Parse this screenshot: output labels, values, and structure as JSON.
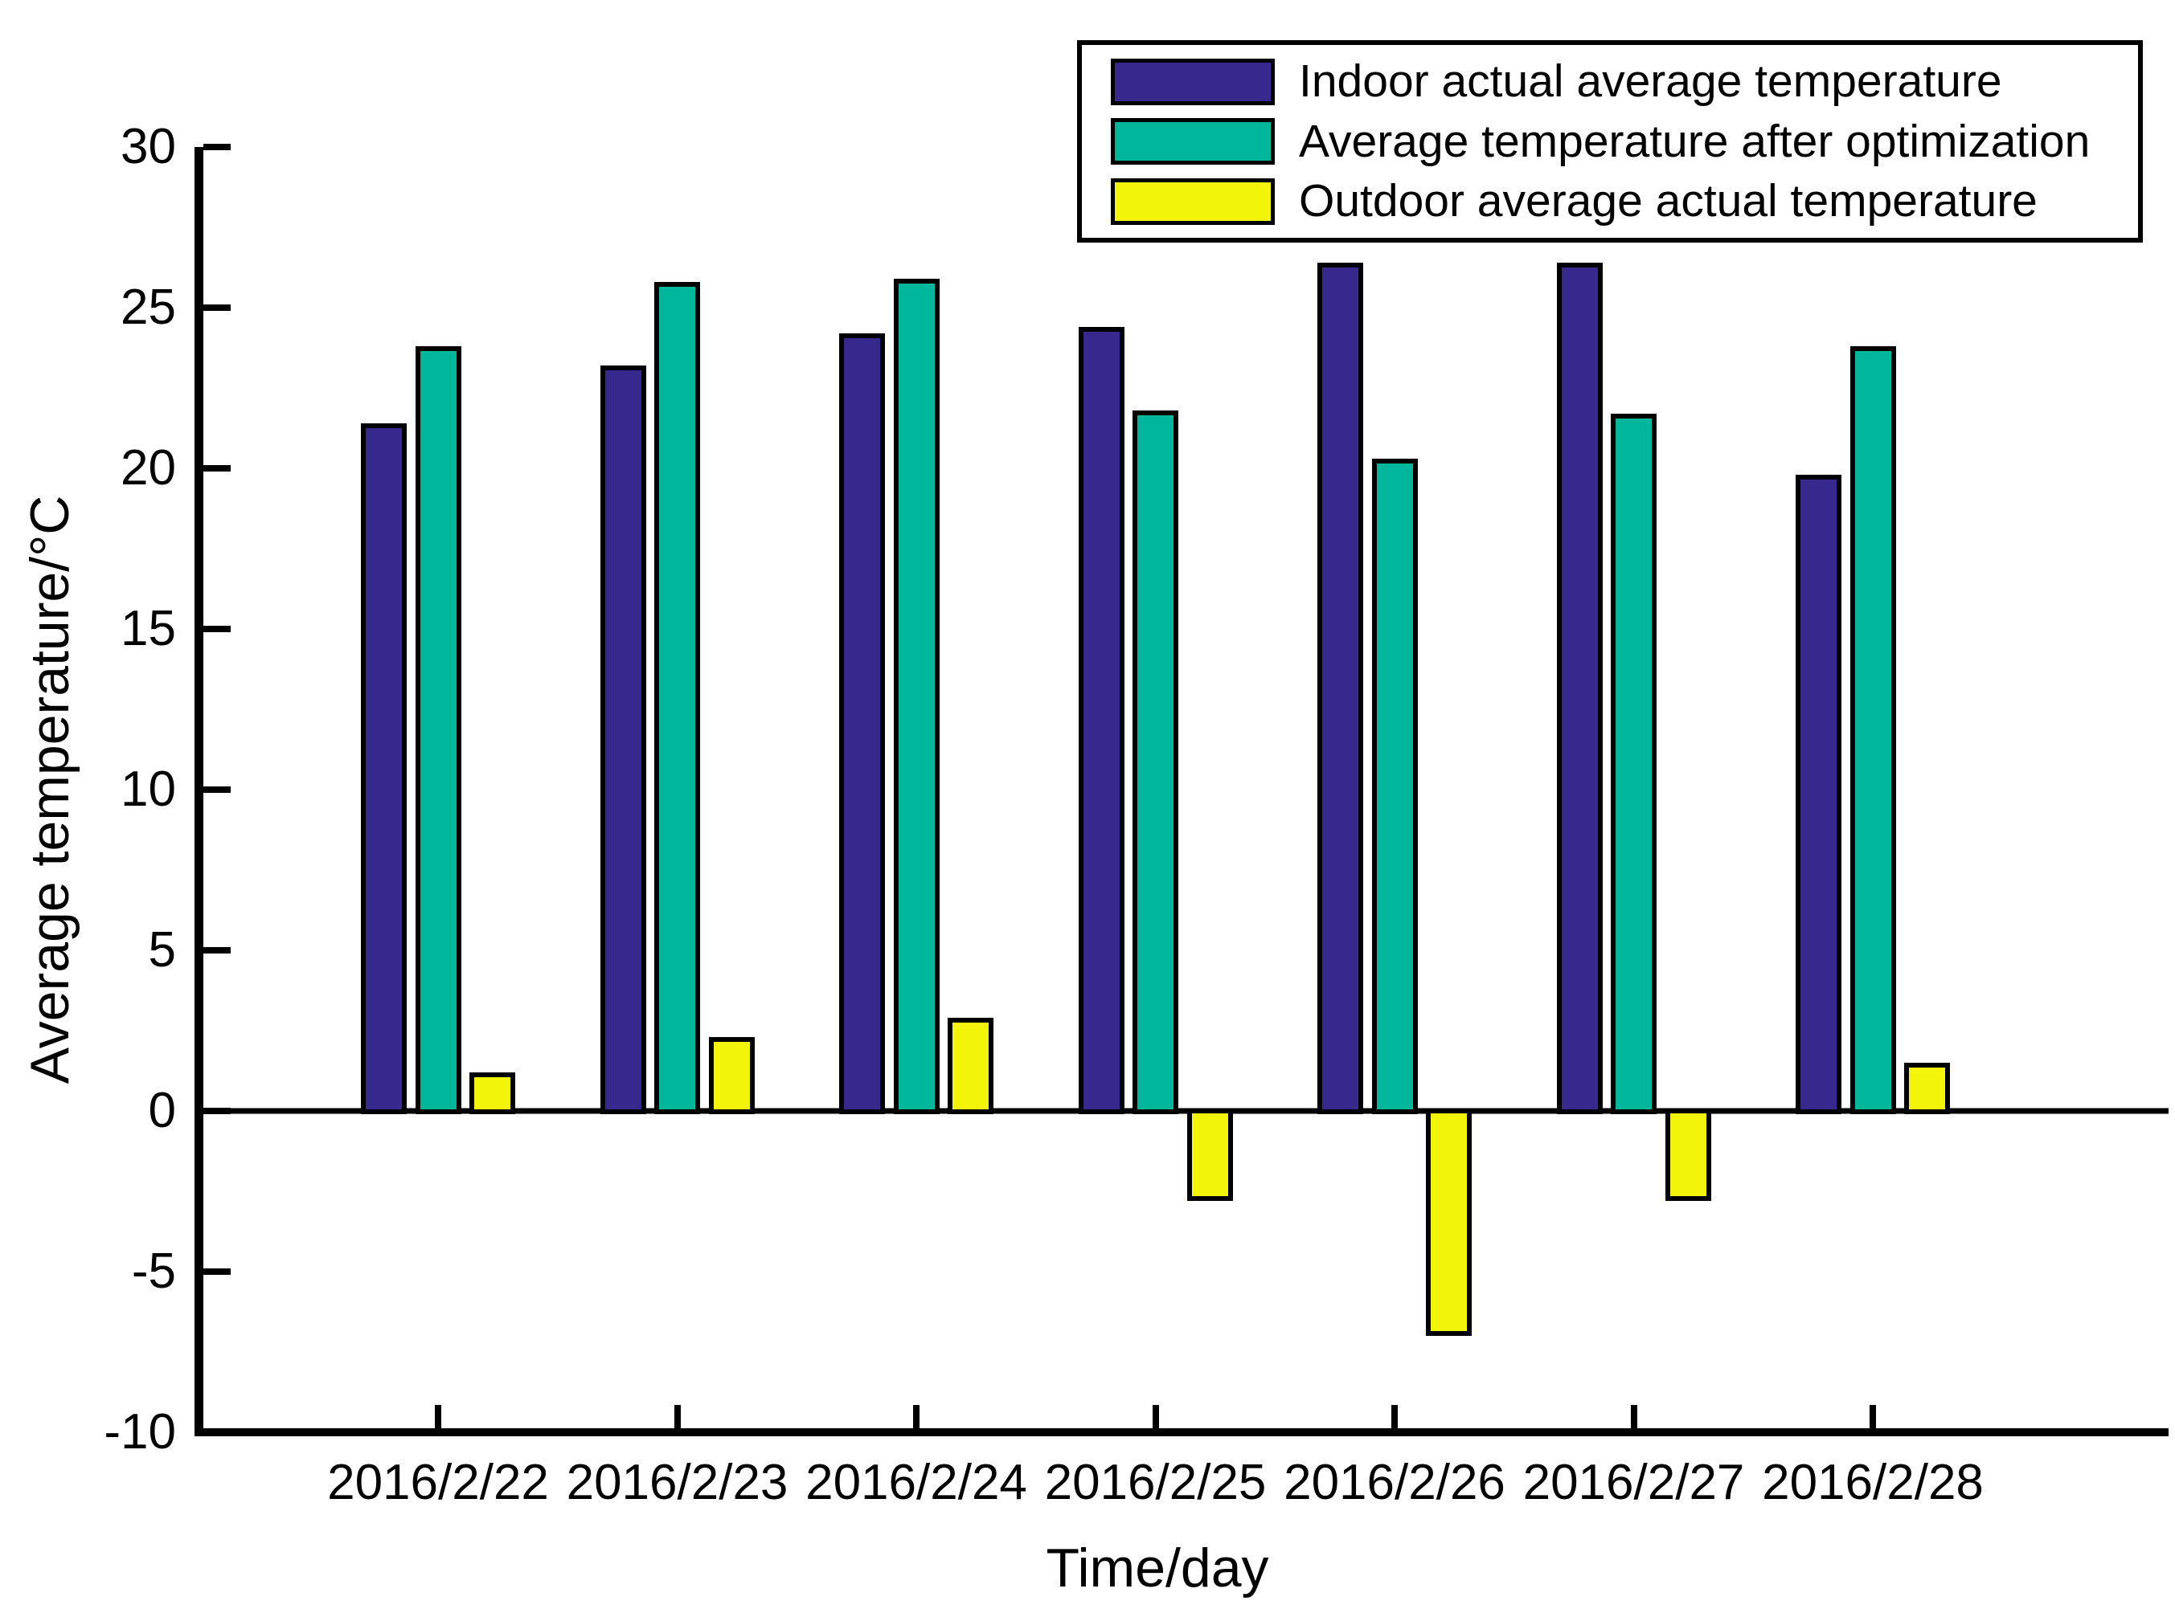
{
  "chart_data": {
    "type": "bar",
    "title": "",
    "xlabel": "Time/day",
    "ylabel": "Average temperature/°C",
    "categories": [
      "2016/2/22",
      "2016/2/23",
      "2016/2/24",
      "2016/2/25",
      "2016/2/26",
      "2016/2/27",
      "2016/2/28"
    ],
    "series": [
      {
        "name": "Indoor actual average temperature",
        "color": "#36288C",
        "values": [
          21.4,
          23.2,
          24.2,
          24.4,
          26.4,
          26.4,
          19.8
        ]
      },
      {
        "name": "Average temperature after optimization",
        "color": "#00B79B",
        "values": [
          23.8,
          25.8,
          25.9,
          21.8,
          20.3,
          21.7,
          23.8
        ]
      },
      {
        "name": "Outdoor average actual temperature",
        "color": "#F2F50A",
        "values": [
          1.2,
          2.3,
          2.9,
          -2.8,
          -7.0,
          -2.8,
          1.5
        ]
      }
    ],
    "ylim": [
      -10,
      30
    ],
    "yticks": [
      30,
      25,
      20,
      15,
      10,
      5,
      0,
      -5,
      -10
    ],
    "grid": false,
    "legend_position": "top-right",
    "bar_edge_color": "#000000",
    "axis_color": "#000000",
    "background_color": "#FFFFFF"
  }
}
